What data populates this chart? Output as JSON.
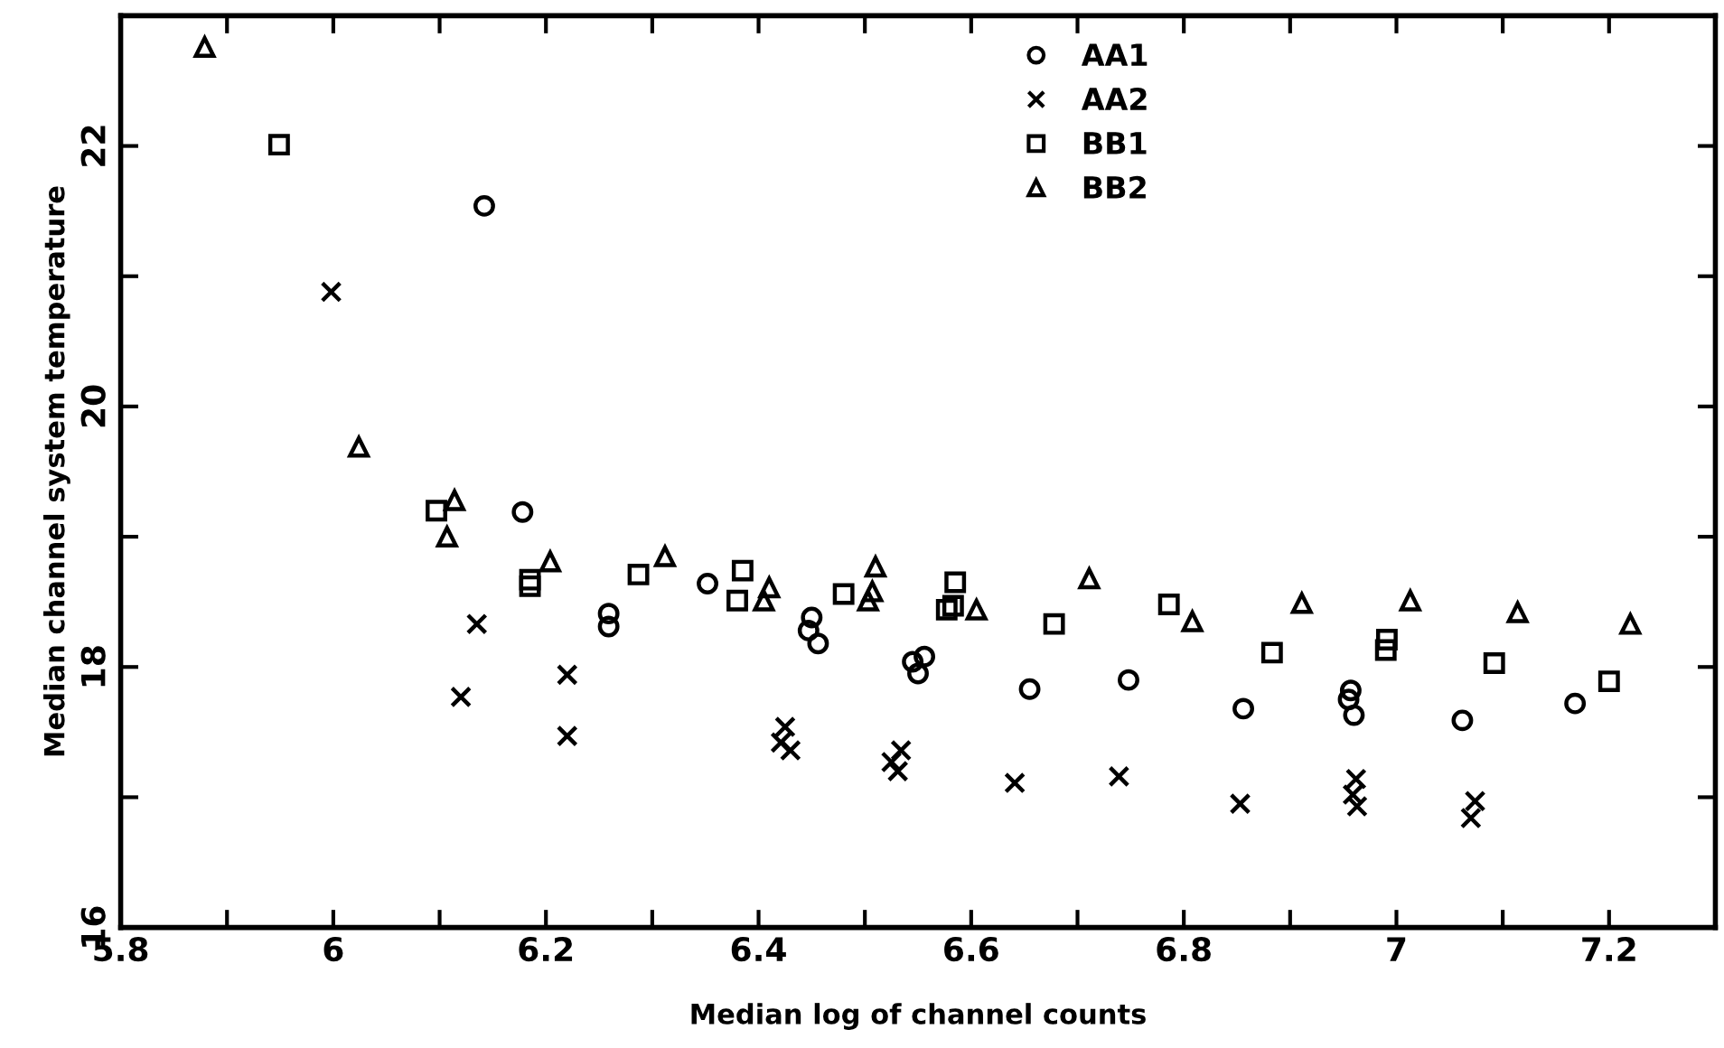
{
  "chart_data": {
    "type": "scatter",
    "xlabel": "Median log of channel counts",
    "ylabel": "Median channel system temperature",
    "xlim": [
      5.8,
      7.3
    ],
    "ylim": [
      16,
      23
    ],
    "xticks": [
      5.8,
      {
        "value": 5.9,
        "label": null
      },
      6,
      {
        "value": 6.1,
        "label": null
      },
      6.2,
      {
        "value": 6.3,
        "label": null
      },
      6.4,
      {
        "value": 6.5,
        "label": null
      },
      6.6,
      {
        "value": 6.7,
        "label": null
      },
      6.8,
      {
        "value": 6.9,
        "label": null
      },
      7,
      {
        "value": 7.1,
        "label": null
      },
      7.2
    ],
    "yticks": [
      16,
      {
        "value": 17,
        "label": null
      },
      18,
      {
        "value": 19,
        "label": null
      },
      20,
      {
        "value": 21,
        "label": null
      },
      22
    ],
    "grid": false,
    "legend": "top",
    "series": [
      {
        "name": "AA1",
        "color": "#000000",
        "marker": "circle",
        "x": [
          6.142,
          6.178,
          6.259,
          6.259,
          6.352,
          6.45,
          6.447,
          6.456,
          6.545,
          6.556,
          6.55,
          6.655,
          6.748,
          6.856,
          6.957,
          6.955,
          6.96,
          7.062,
          7.168
        ],
        "values": [
          21.54,
          19.19,
          18.41,
          18.31,
          18.64,
          18.38,
          18.28,
          18.18,
          18.04,
          18.08,
          17.95,
          17.83,
          17.9,
          17.68,
          17.82,
          17.75,
          17.63,
          17.59,
          17.72
        ]
      },
      {
        "name": "AA2",
        "color": "#000000",
        "marker": "cross",
        "x": [
          5.998,
          6.135,
          6.12,
          6.22,
          6.22,
          6.425,
          6.421,
          6.43,
          6.525,
          6.534,
          6.531,
          6.641,
          6.739,
          6.853,
          6.962,
          6.959,
          6.963,
          7.074,
          7.07
        ],
        "values": [
          20.88,
          18.33,
          17.77,
          17.94,
          17.47,
          17.54,
          17.42,
          17.36,
          17.27,
          17.36,
          17.2,
          17.11,
          17.16,
          16.95,
          17.14,
          17.02,
          16.93,
          16.97,
          16.84
        ]
      },
      {
        "name": "BB1",
        "color": "#000000",
        "marker": "square",
        "x": [
          5.949,
          6.097,
          6.185,
          6.185,
          6.287,
          6.385,
          6.38,
          6.48,
          6.585,
          6.577,
          6.583,
          6.678,
          6.786,
          6.883,
          6.991,
          6.99,
          7.092,
          7.2
        ],
        "values": [
          22.01,
          19.2,
          18.67,
          18.62,
          18.71,
          18.74,
          18.51,
          18.56,
          18.65,
          18.44,
          18.47,
          18.33,
          18.48,
          18.11,
          18.21,
          18.13,
          18.03,
          17.89
        ]
      },
      {
        "name": "BB2",
        "color": "#000000",
        "marker": "triangle",
        "x": [
          5.879,
          6.024,
          6.114,
          6.107,
          6.204,
          6.312,
          6.41,
          6.405,
          6.51,
          6.507,
          6.503,
          6.605,
          6.711,
          6.808,
          6.911,
          7.013,
          7.114,
          7.22
        ],
        "values": [
          22.76,
          19.69,
          19.28,
          19.0,
          18.81,
          18.85,
          18.61,
          18.51,
          18.77,
          18.58,
          18.51,
          18.44,
          18.68,
          18.35,
          18.49,
          18.51,
          18.42,
          18.33
        ]
      }
    ]
  }
}
